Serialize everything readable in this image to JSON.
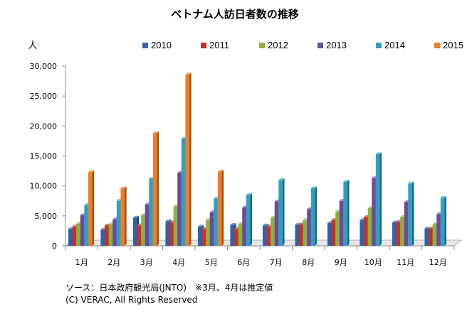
{
  "chart_data": {
    "type": "bar",
    "title": "ベトナム人訪日者数の推移",
    "ylabel": "人",
    "ylim": [
      0,
      30000
    ],
    "yticks": [
      "0",
      "5,000",
      "10,000",
      "15,000",
      "20,000",
      "25,000",
      "30,000"
    ],
    "ytick_values": [
      0,
      5000,
      10000,
      15000,
      20000,
      25000,
      30000
    ],
    "grid": false,
    "legend_position": "top",
    "categories": [
      "1月",
      "2月",
      "3月",
      "4月",
      "5月",
      "6月",
      "7月",
      "8月",
      "9月",
      "10月",
      "11月",
      "12月"
    ],
    "series": [
      {
        "name": "2010",
        "color": "#2f62ad",
        "values": [
          2800,
          2700,
          4700,
          4100,
          3200,
          3500,
          3400,
          3500,
          3800,
          4300,
          3900,
          2900
        ]
      },
      {
        "name": "2011",
        "color": "#c43229",
        "values": [
          3200,
          3400,
          3400,
          3900,
          2800,
          2800,
          3200,
          3600,
          4300,
          4800,
          4000,
          2900
        ]
      },
      {
        "name": "2012",
        "color": "#8db03e",
        "values": [
          3700,
          3600,
          5100,
          6600,
          4300,
          3600,
          4700,
          4300,
          5700,
          6300,
          4800,
          3600
        ]
      },
      {
        "name": "2013",
        "color": "#6d4a9b",
        "values": [
          5100,
          4400,
          6900,
          12200,
          5600,
          6400,
          7400,
          6100,
          7500,
          11300,
          7300,
          5300
        ]
      },
      {
        "name": "2014",
        "color": "#2fa0c1",
        "values": [
          6800,
          7500,
          11200,
          17900,
          7900,
          8500,
          11000,
          9600,
          10700,
          15300,
          10400,
          8000
        ]
      },
      {
        "name": "2015",
        "color": "#ee7d24",
        "values": [
          12300,
          9600,
          18800,
          28600,
          12400,
          null,
          null,
          null,
          null,
          null,
          null,
          null
        ]
      }
    ]
  },
  "notes": {
    "source": "ソース：日本政府観光局(JNTO)　※3月、4月は推定値",
    "copyright": "(C) VERAC, All Rights Reserved"
  }
}
